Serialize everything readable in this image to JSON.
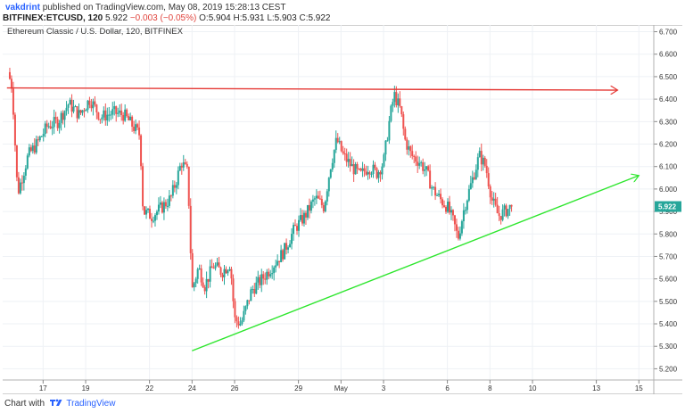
{
  "header": {
    "author": "vakdrint",
    "published": "published on TradingView.com, May 08, 2019 15:28:13 CEST",
    "symbol": "BITFINEX:ETCUSD, 120",
    "last": "5.922",
    "change": "−0.003 (−0.05%)",
    "o_label": "O:",
    "o_value": "5.904",
    "h_label": "H:",
    "h_value": "5.931",
    "l_label": "L:",
    "l_value": "5.903",
    "c_label": "C:",
    "c_value": "5.922"
  },
  "legend": "Ethereum Classic / U.S. Dollar, 120, BITFINEX",
  "footer": {
    "prefix": "Chart with",
    "brand": "TradingView"
  },
  "colors": {
    "up": "#26a69a",
    "down": "#ef5350",
    "resistance": "#e53935",
    "support": "#2ee62e",
    "grid": "#eef1f5",
    "price_label": "#26a69a"
  },
  "chart_data": {
    "type": "candlestick",
    "title": "Ethereum Classic / U.S. Dollar, 120, BITFINEX",
    "x_ticks": [
      "17",
      "19",
      "22",
      "24",
      "26",
      "29",
      "May",
      "3",
      "6",
      "8",
      "10",
      "13",
      "15"
    ],
    "y_ticks": [
      "5.200",
      "5.300",
      "5.400",
      "5.500",
      "5.600",
      "5.700",
      "5.800",
      "5.900",
      "6.000",
      "6.100",
      "6.200",
      "6.300",
      "6.400",
      "6.500",
      "6.600",
      "6.700"
    ],
    "ylim": [
      5.15,
      6.73
    ],
    "last_price": "5.922",
    "anchors": [
      [
        15.35,
        6.52
      ],
      [
        15.55,
        6.45
      ],
      [
        15.8,
        5.98
      ],
      [
        16.3,
        6.15
      ],
      [
        16.7,
        6.2
      ],
      [
        17.2,
        6.28
      ],
      [
        17.7,
        6.3
      ],
      [
        18.2,
        6.38
      ],
      [
        18.7,
        6.33
      ],
      [
        19.2,
        6.4
      ],
      [
        19.7,
        6.32
      ],
      [
        20.3,
        6.34
      ],
      [
        20.8,
        6.33
      ],
      [
        21.3,
        6.27
      ],
      [
        21.55,
        6.24
      ],
      [
        21.7,
        5.9
      ],
      [
        22.1,
        5.88
      ],
      [
        22.6,
        5.92
      ],
      [
        23.0,
        5.96
      ],
      [
        23.3,
        6.05
      ],
      [
        23.5,
        6.12
      ],
      [
        23.8,
        6.07
      ],
      [
        24.0,
        5.55
      ],
      [
        24.3,
        5.65
      ],
      [
        24.6,
        5.57
      ],
      [
        25.0,
        5.66
      ],
      [
        25.4,
        5.63
      ],
      [
        25.8,
        5.67
      ],
      [
        26.0,
        5.42
      ],
      [
        26.3,
        5.4
      ],
      [
        26.8,
        5.55
      ],
      [
        27.3,
        5.6
      ],
      [
        27.8,
        5.66
      ],
      [
        28.3,
        5.72
      ],
      [
        28.8,
        5.82
      ],
      [
        29.3,
        5.88
      ],
      [
        29.8,
        5.96
      ],
      [
        30.2,
        5.92
      ],
      [
        30.5,
        6.1
      ],
      [
        30.8,
        6.22
      ],
      [
        31.1,
        6.15
      ],
      [
        31.5,
        6.1
      ],
      [
        31.9,
        6.06
      ],
      [
        32.3,
        6.1
      ],
      [
        32.7,
        6.07
      ],
      [
        33.0,
        6.12
      ],
      [
        33.3,
        6.32
      ],
      [
        33.5,
        6.42
      ],
      [
        33.8,
        6.35
      ],
      [
        34.0,
        6.22
      ],
      [
        34.3,
        6.15
      ],
      [
        34.7,
        6.12
      ],
      [
        35.0,
        6.08
      ],
      [
        35.3,
        6.0
      ],
      [
        35.7,
        5.95
      ],
      [
        36.0,
        5.92
      ],
      [
        36.3,
        5.85
      ],
      [
        36.5,
        5.78
      ],
      [
        36.8,
        5.92
      ],
      [
        37.2,
        6.05
      ],
      [
        37.5,
        6.15
      ],
      [
        37.8,
        6.1
      ],
      [
        38.1,
        5.95
      ],
      [
        38.4,
        5.88
      ],
      [
        38.7,
        5.9
      ],
      [
        39.0,
        5.922
      ]
    ],
    "lines": [
      {
        "name": "resistance",
        "from": [
          15.3,
          6.45
        ],
        "to": [
          44.0,
          6.44
        ]
      },
      {
        "name": "support",
        "from": [
          24.0,
          5.28
        ],
        "to": [
          45.0,
          6.06
        ]
      }
    ]
  }
}
